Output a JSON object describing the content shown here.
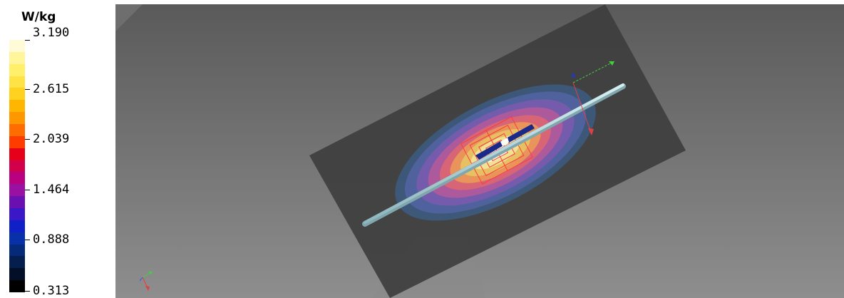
{
  "legend": {
    "unit": "W/kg",
    "ticks": [
      "3.190",
      "2.615",
      "2.039",
      "1.464",
      "0.888",
      "0.313"
    ],
    "colors": [
      "#fffbd6",
      "#fff59a",
      "#ffef6b",
      "#ffe346",
      "#ffd21f",
      "#ffb600",
      "#ff9800",
      "#ff6c00",
      "#ff3c00",
      "#e6001a",
      "#d2004a",
      "#b80080",
      "#9a10a0",
      "#6a10b0",
      "#3a18c8",
      "#1020c8",
      "#0830a8",
      "#062a7a",
      "#041e4e",
      "#020f26",
      "#000000"
    ]
  },
  "viewport": {
    "background_top": "#5a5a5a",
    "background_bottom": "#8e8e8e"
  }
}
